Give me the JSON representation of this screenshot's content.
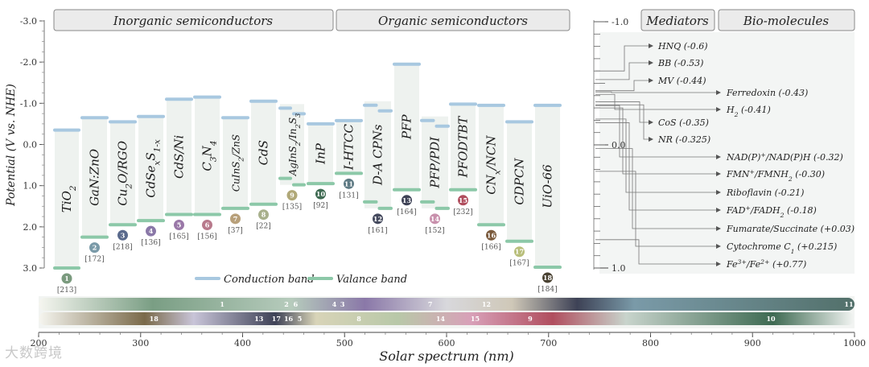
{
  "colors": {
    "cb": "#a8c8e0",
    "vb": "#8cc8a8",
    "panel": "#eef2ef",
    "header_bg": "#ebebeb",
    "header_border": "#8a8a8a"
  },
  "headers": {
    "inorganic": "Inorganic semiconductors",
    "organic": "Organic semiconductors",
    "mediators": "Mediators",
    "biomolecules": "Bio-molecules"
  },
  "axis": {
    "ylabel": "Potential (V vs. NHE)",
    "yticks": [
      "-3.0",
      "-2.0",
      "-1.0",
      "0.0",
      "1.0",
      "2.0",
      "3.0"
    ],
    "xlabel": "Solar spectrum (nm)",
    "xticks": [
      "200",
      "300",
      "400",
      "500",
      "600",
      "700",
      "800",
      "900",
      "1000"
    ],
    "right_ticks": [
      "-1.0",
      "0.0",
      "1.0"
    ]
  },
  "legend": {
    "cb": "Conduction band",
    "vb": "Valance band"
  },
  "materials": [
    {
      "num": "1",
      "name": "TiO2",
      "ref": "[213]",
      "cb": -0.35,
      "vb": 3.0,
      "color": "#7a9a7e"
    },
    {
      "num": "2",
      "name": "GaN:ZnO",
      "ref": "[172]",
      "cb": -0.65,
      "vb": 2.25,
      "color": "#7a9aa8"
    },
    {
      "num": "3",
      "name": "Cu2O/RGO",
      "ref": "[218]",
      "cb": -0.55,
      "vb": 1.95,
      "color": "#5a6a8c"
    },
    {
      "num": "4",
      "name": "CdSexS1-x",
      "ref": "[136]",
      "cb": -0.68,
      "vb": 1.85,
      "color": "#8a78a8"
    },
    {
      "num": "5",
      "name": "CdS/Ni",
      "ref": "[165]",
      "cb": -1.1,
      "vb": 1.7,
      "color": "#9a78a8"
    },
    {
      "num": "6",
      "name": "C3N4",
      "ref": "[156]",
      "cb": -1.15,
      "vb": 1.7,
      "color": "#b87a8c"
    },
    {
      "num": "7",
      "name": "CuInS2/ZnS",
      "ref": "[37]",
      "cb": -0.65,
      "vb": 1.55,
      "color": "#b8a07a"
    },
    {
      "num": "8",
      "name": "CdS",
      "ref": "[22]",
      "cb": -1.05,
      "vb": 1.45,
      "color": "#a8b08c"
    },
    {
      "num": "9",
      "name": "AgInS2/In2S3",
      "ref": "[135]",
      "cb": -0.98,
      "vb": 0.98,
      "color": "#b0a878"
    },
    {
      "num": "10",
      "name": "InP",
      "ref": "[92]",
      "cb": -0.5,
      "vb": 0.95,
      "color": "#3e6a52"
    },
    {
      "num": "11",
      "name": "I-HTCC",
      "ref": "[131]",
      "cb": -0.58,
      "vb": 0.7,
      "color": "#5e7a84"
    },
    {
      "num": "12",
      "name": "D-A CPNs",
      "ref": "[161]",
      "cb": -1.05,
      "vb": 1.55,
      "color": "#454a5e"
    },
    {
      "num": "13",
      "name": "PFP",
      "ref": "[164]",
      "cb": -1.95,
      "vb": 1.1,
      "color": "#3e4256"
    },
    {
      "num": "14",
      "name": "PFP/PDI",
      "ref": "[152]",
      "cb": -0.68,
      "vb": 1.55,
      "color": "#c890ac"
    },
    {
      "num": "15",
      "name": "PFODTBT",
      "ref": "[232]",
      "cb": -0.98,
      "vb": 1.1,
      "color": "#b04e5e"
    },
    {
      "num": "16",
      "name": "CNx/NCN",
      "ref": "[166]",
      "cb": -0.95,
      "vb": 1.95,
      "color": "#7a5a3c"
    },
    {
      "num": "17",
      "name": "CDPCN",
      "ref": "[167]",
      "cb": -0.55,
      "vb": 2.35,
      "color": "#b8be7a"
    },
    {
      "num": "18",
      "name": "UiO-66",
      "ref": "[184]",
      "cb": -0.95,
      "vb": 2.98,
      "color": "#4a4232"
    }
  ],
  "mediators": [
    {
      "label": "HNQ (-0.6)",
      "potential": -0.6
    },
    {
      "label": "BB (-0.53)",
      "potential": -0.53
    },
    {
      "label": "MV (-0.44)",
      "potential": -0.44
    },
    {
      "label": "CoS (-0.35)",
      "potential": -0.35
    },
    {
      "label": "NR (-0.325)",
      "potential": -0.325
    }
  ],
  "biomolecules": [
    {
      "label": "Ferredoxin (-0.43)",
      "potential": -0.43
    },
    {
      "label": "H2 (-0.41)",
      "potential": -0.41
    },
    {
      "label": "NAD(P)+/NAD(P)H (-0.32)",
      "potential": -0.32
    },
    {
      "label": "FMN+/FMNH2 (-0.30)",
      "potential": -0.3
    },
    {
      "label": "Riboflavin (-0.21)",
      "potential": -0.21
    },
    {
      "label": "FAD+/FADH2 (-0.18)",
      "potential": -0.18
    },
    {
      "label": "Fumarate/Succinate (+0.03)",
      "potential": 0.03
    },
    {
      "label": "Cytochrome C1 (+0.215)",
      "potential": 0.215
    },
    {
      "label": "Fe3+/Fe2+ (+0.77)",
      "potential": 0.77
    }
  ],
  "spectrum_row1": [
    {
      "num": "1",
      "nm": 380
    },
    {
      "num": "2",
      "nm": 443
    },
    {
      "num": "6",
      "nm": 452
    },
    {
      "num": "4",
      "nm": 490
    },
    {
      "num": "3",
      "nm": 498
    },
    {
      "num": "7",
      "nm": 584
    },
    {
      "num": "12",
      "nm": 639
    },
    {
      "num": "11",
      "nm": 1000
    }
  ],
  "spectrum_row2": [
    {
      "num": "18",
      "nm": 313
    },
    {
      "num": "13",
      "nm": 416
    },
    {
      "num": "17",
      "nm": 433
    },
    {
      "num": "16",
      "nm": 445
    },
    {
      "num": "5",
      "nm": 456
    },
    {
      "num": "8",
      "nm": 514
    },
    {
      "num": "14",
      "nm": 594
    },
    {
      "num": "15",
      "nm": 628
    },
    {
      "num": "9",
      "nm": 682
    },
    {
      "num": "10",
      "nm": 918
    }
  ],
  "watermark": "大数跨境"
}
